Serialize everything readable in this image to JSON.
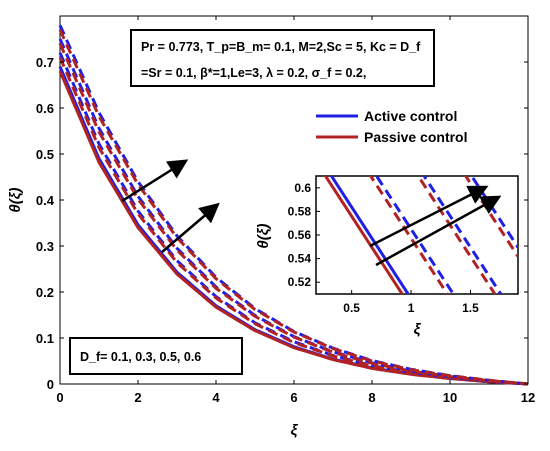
{
  "chart_data": {
    "type": "line",
    "xlabel": "ξ",
    "ylabel": "θ(ξ)",
    "xlim": [
      0,
      12
    ],
    "ylim": [
      0,
      0.8
    ],
    "xticks": [
      "0",
      "2",
      "4",
      "6",
      "8",
      "10",
      "12"
    ],
    "yticks": [
      "0",
      "0.1",
      "0.2",
      "0.3",
      "0.4",
      "0.5",
      "0.6",
      "0.7"
    ],
    "parameter_lines": [
      "Pr = 0.773, T_p=B_m= 0.1, M=2,Sc = 5, Kc = D_f",
      "=Sr = 0.1, β*=1,Le=3, λ = 0.2, σ_f = 0.2,"
    ],
    "annotation": "D_f= 0.1, 0.3, 0.5, 0.6",
    "legend": {
      "placement": "right",
      "entries": [
        {
          "label": "Active control",
          "color": "#1f1fe6"
        },
        {
          "label": "Passive control",
          "color": "#b22222"
        }
      ]
    },
    "df_values": [
      0.1,
      0.3,
      0.5,
      0.6
    ],
    "x": [
      0,
      1,
      2,
      3,
      4,
      5,
      6,
      7,
      8,
      9,
      10,
      11,
      12
    ],
    "series": [
      {
        "name": "Active control",
        "df": 0.1,
        "values": [
          0.69,
          0.49,
          0.346,
          0.243,
          0.17,
          0.118,
          0.081,
          0.054,
          0.035,
          0.022,
          0.012,
          0.005,
          0
        ]
      },
      {
        "name": "Passive control",
        "df": 0.1,
        "values": [
          0.68,
          0.482,
          0.34,
          0.239,
          0.167,
          0.116,
          0.079,
          0.053,
          0.034,
          0.021,
          0.012,
          0.005,
          0
        ]
      },
      {
        "name": "Active control",
        "df": 0.3,
        "values": [
          0.72,
          0.522,
          0.376,
          0.268,
          0.19,
          0.133,
          0.092,
          0.062,
          0.04,
          0.025,
          0.014,
          0.006,
          0
        ]
      },
      {
        "name": "Passive control",
        "df": 0.3,
        "values": [
          0.71,
          0.514,
          0.37,
          0.264,
          0.187,
          0.131,
          0.09,
          0.061,
          0.039,
          0.024,
          0.014,
          0.006,
          0
        ]
      },
      {
        "name": "Active control",
        "df": 0.5,
        "values": [
          0.75,
          0.556,
          0.408,
          0.295,
          0.211,
          0.149,
          0.103,
          0.07,
          0.046,
          0.028,
          0.016,
          0.007,
          0
        ]
      },
      {
        "name": "Passive control",
        "df": 0.5,
        "values": [
          0.74,
          0.548,
          0.402,
          0.291,
          0.208,
          0.147,
          0.102,
          0.069,
          0.045,
          0.028,
          0.016,
          0.007,
          0
        ]
      },
      {
        "name": "Active control",
        "df": 0.6,
        "values": [
          0.78,
          0.59,
          0.44,
          0.322,
          0.232,
          0.164,
          0.114,
          0.078,
          0.051,
          0.032,
          0.018,
          0.008,
          0
        ]
      },
      {
        "name": "Passive control",
        "df": 0.6,
        "values": [
          0.77,
          0.582,
          0.434,
          0.318,
          0.229,
          0.162,
          0.113,
          0.077,
          0.05,
          0.031,
          0.018,
          0.008,
          0
        ]
      }
    ],
    "inset": {
      "xlabel": "ξ",
      "ylabel": "θ(ξ)",
      "xlim": [
        0.2,
        1.9
      ],
      "ylim": [
        0.51,
        0.61
      ],
      "xticks": [
        "0.5",
        "1",
        "1.5"
      ],
      "yticks": [
        "0.52",
        "0.54",
        "0.56",
        "0.58",
        "0.6"
      ]
    }
  }
}
